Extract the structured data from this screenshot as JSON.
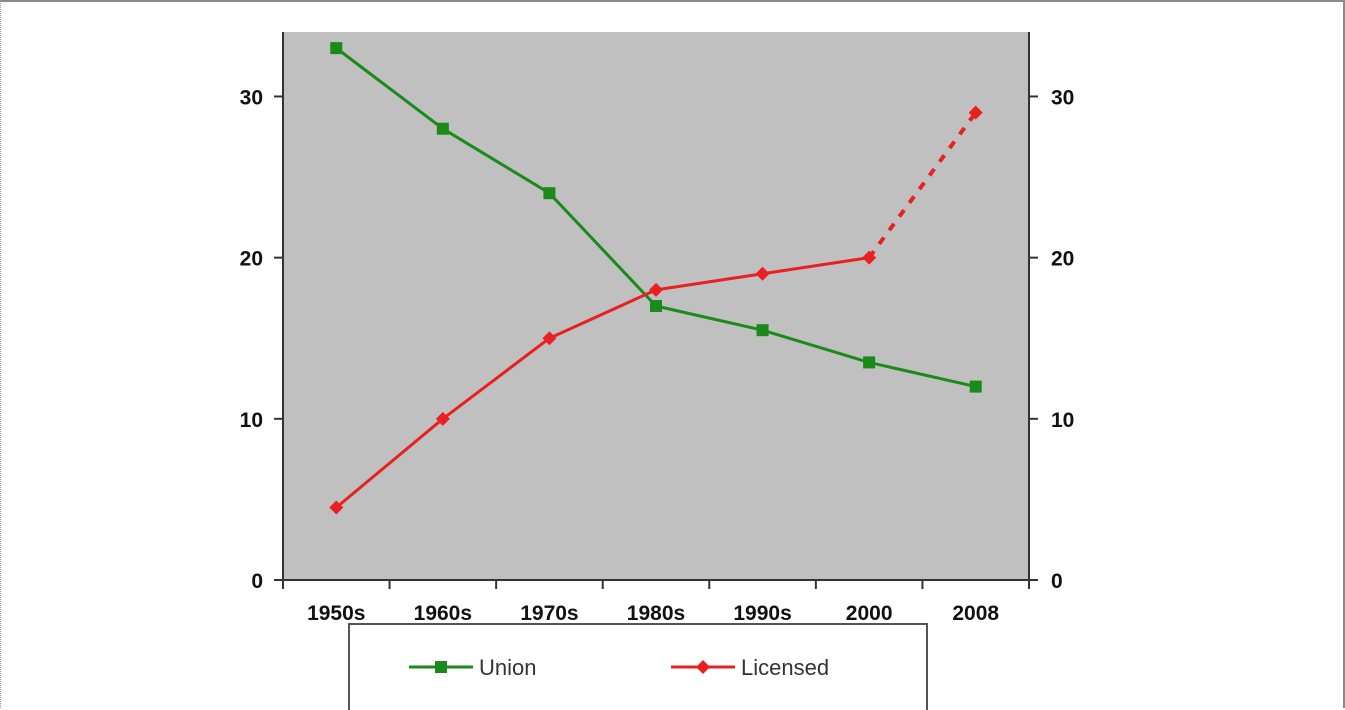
{
  "chart_data": {
    "type": "line",
    "categories": [
      "1950s",
      "1960s",
      "1970s",
      "1980s",
      "1990s",
      "2000",
      "2008"
    ],
    "ylim": [
      0,
      34
    ],
    "yticks": [
      0,
      10,
      20,
      30
    ],
    "y2ticks": [
      0,
      10,
      20,
      30
    ],
    "grid": false,
    "legend_position": "bottom",
    "plot_background": "#c0c0c0",
    "series": [
      {
        "name": "Union",
        "color": "#1a8a1a",
        "marker": "square",
        "values": [
          33,
          28,
          24,
          17,
          15.5,
          13.5,
          12
        ]
      },
      {
        "name": "Licensed",
        "color": "#e82020",
        "marker": "diamond",
        "values": [
          4.5,
          10,
          15,
          18,
          19,
          20,
          29
        ],
        "dashed_from_index": 5
      }
    ]
  }
}
